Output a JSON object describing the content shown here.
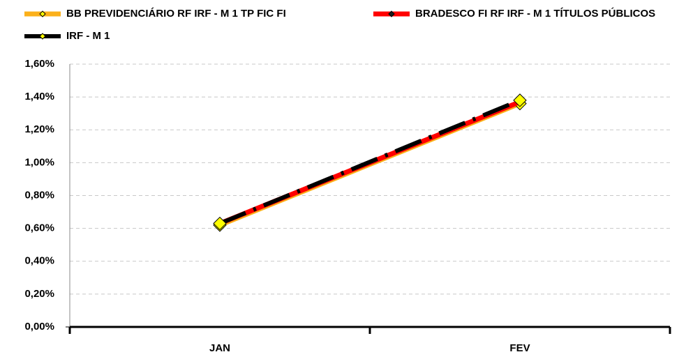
{
  "chart_data": {
    "type": "line",
    "categories": [
      "JAN",
      "FEV"
    ],
    "series": [
      {
        "name": "BB PREVIDENCIÁRIO RF IRF - M 1 TP FIC FI",
        "color": "#fbb01a",
        "marker_color": "#ffff00",
        "values": [
          0.62,
          1.36
        ]
      },
      {
        "name": "BRADESCO FI RF IRF - M 1 TÍTULOS PÚBLICOS",
        "color": "#ff0000",
        "marker_color": "#1a1a1a",
        "values": [
          0.63,
          1.37
        ]
      },
      {
        "name": "IRF - M 1",
        "color": "#000000",
        "marker_color": "#ffff00",
        "dashed": true,
        "values": [
          0.63,
          1.38
        ]
      }
    ],
    "ylim": [
      0,
      1.6
    ],
    "yticks": [
      {
        "value": 0,
        "label": "0,00%"
      },
      {
        "value": 0.2,
        "label": "0,20%"
      },
      {
        "value": 0.4,
        "label": "0,40%"
      },
      {
        "value": 0.6,
        "label": "0,60%"
      },
      {
        "value": 0.8,
        "label": "0,80%"
      },
      {
        "value": 1.0,
        "label": "1,00%"
      },
      {
        "value": 1.2,
        "label": "1,20%"
      },
      {
        "value": 1.4,
        "label": "1,40%"
      },
      {
        "value": 1.6,
        "label": "1,60%"
      }
    ],
    "grid": true
  }
}
